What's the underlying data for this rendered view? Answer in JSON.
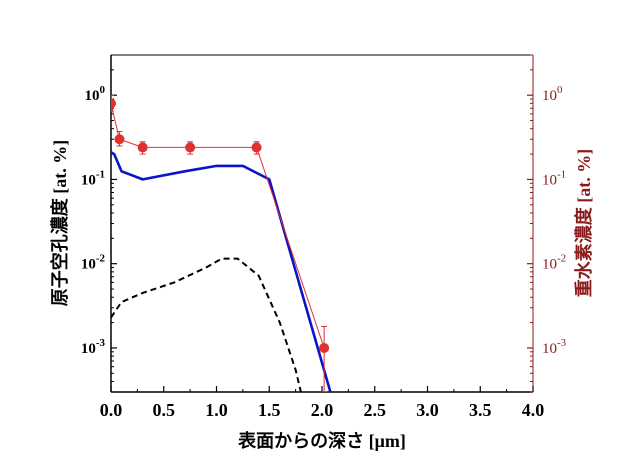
{
  "chart_data": {
    "type": "line",
    "xlabel": "表面からの深さ [μm]",
    "ylabel_left": "原子空孔濃度 [at. %]",
    "ylabel_right": "重水素濃度 [at. %]",
    "x_ticks": [
      "0.0",
      "0.5",
      "1.0",
      "1.5",
      "2.0",
      "2.5",
      "3.0",
      "3.5",
      "4.0"
    ],
    "xlim": [
      0,
      4
    ],
    "ylim_left": [
      0.0003,
      3
    ],
    "ylim_right": [
      0.0003,
      3
    ],
    "yscale": "log",
    "y_ticks_left": [
      {
        "value": 1,
        "base": "10",
        "exp": "0"
      },
      {
        "value": 0.1,
        "base": "10",
        "exp": "-1"
      },
      {
        "value": 0.01,
        "base": "10",
        "exp": "-2"
      },
      {
        "value": 0.001,
        "base": "10",
        "exp": "-3"
      }
    ],
    "y_ticks_right": [
      {
        "value": 1,
        "base": "10",
        "exp": "0"
      },
      {
        "value": 0.1,
        "base": "10",
        "exp": "-1"
      },
      {
        "value": 0.01,
        "base": "10",
        "exp": "-2"
      },
      {
        "value": 0.001,
        "base": "10",
        "exp": "-3"
      }
    ],
    "colors": {
      "blue": "#0a14c8",
      "red": "#e03030",
      "dark_red": "#8b1a1a",
      "black": "#000000"
    },
    "series": [
      {
        "axis": "left",
        "style": "solid",
        "color": "#0a14c8",
        "x": [
          0.0,
          0.03,
          0.1,
          0.3,
          0.7,
          1.0,
          1.25,
          1.5,
          2.08
        ],
        "y": [
          0.21,
          0.2,
          0.125,
          0.1,
          0.125,
          0.145,
          0.145,
          0.1,
          0.0003
        ]
      },
      {
        "axis": "left",
        "style": "dashed",
        "color": "#000000",
        "x": [
          0.0,
          0.1,
          0.3,
          0.6,
          0.9,
          1.05,
          1.2,
          1.4,
          1.6,
          1.75,
          1.8
        ],
        "y": [
          0.0023,
          0.0035,
          0.0045,
          0.006,
          0.009,
          0.0115,
          0.0115,
          0.0072,
          0.002,
          0.00055,
          0.0003
        ]
      },
      {
        "axis": "right",
        "style": "markers-line",
        "color": "#e03030",
        "x": [
          0.0,
          0.08,
          0.3,
          0.75,
          1.38,
          2.02
        ],
        "y": [
          0.8,
          0.3,
          0.24,
          0.24,
          0.24,
          0.001
        ],
        "err_upper": [
          1.0,
          0.37,
          0.28,
          0.28,
          0.28,
          0.0018
        ],
        "err_lower": [
          0.65,
          0.25,
          0.2,
          0.2,
          0.2,
          0.0003
        ]
      }
    ]
  }
}
